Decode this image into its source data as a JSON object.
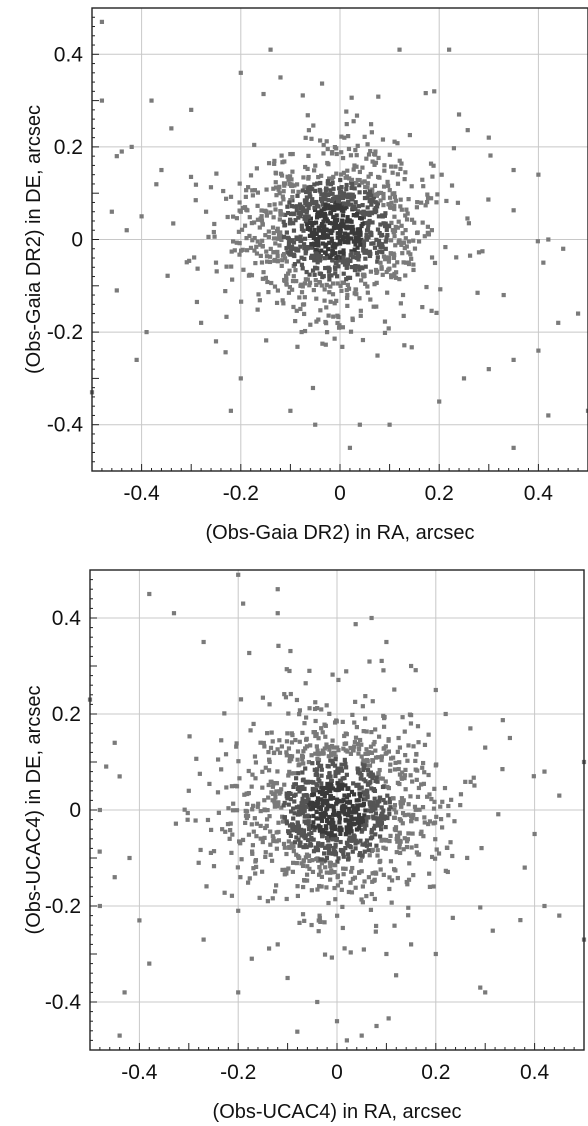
{
  "chart_data": [
    {
      "type": "scatter",
      "xlabel": "(Obs-Gaia DR2) in RA, arcsec",
      "ylabel": "(Obs-Gaia DR2) in DE, arcsec",
      "xlim": [
        -0.5,
        0.5
      ],
      "ylim": [
        -0.5,
        0.5
      ],
      "xticks": [
        -0.4,
        -0.2,
        0,
        0.2,
        0.4
      ],
      "yticks": [
        -0.4,
        -0.2,
        0,
        0.2,
        0.4
      ],
      "xtick_labels": [
        "-0.4",
        "-0.2",
        "0",
        "0.2",
        "0.4"
      ],
      "ytick_labels": [
        "-0.4",
        "-0.2",
        "0",
        "0.2",
        "0.4"
      ],
      "grid": true,
      "marker_color": "#7a7a7a",
      "density_peak": [
        -0.01,
        0.02
      ],
      "points": [
        [
          -0.48,
          0.47
        ],
        [
          -0.45,
          0.18
        ],
        [
          -0.44,
          0.19
        ],
        [
          -0.42,
          0.2
        ],
        [
          -0.46,
          0.06
        ],
        [
          -0.45,
          -0.11
        ],
        [
          -0.48,
          0.3
        ],
        [
          -0.43,
          0.02
        ],
        [
          -0.38,
          0.3
        ],
        [
          -0.4,
          0.05
        ],
        [
          -0.39,
          -0.2
        ],
        [
          -0.41,
          -0.26
        ],
        [
          -0.36,
          0.15
        ],
        [
          -0.34,
          0.24
        ],
        [
          -0.3,
          0.28
        ],
        [
          -0.27,
          0.06
        ],
        [
          -0.25,
          -0.05
        ],
        [
          -0.28,
          -0.18
        ],
        [
          -0.25,
          -0.22
        ],
        [
          -0.22,
          -0.37
        ],
        [
          -0.2,
          0.36
        ],
        [
          -0.14,
          0.41
        ],
        [
          -0.12,
          0.35
        ],
        [
          -0.2,
          0.06
        ],
        [
          -0.2,
          -0.3
        ],
        [
          -0.1,
          -0.37
        ],
        [
          0.12,
          0.41
        ],
        [
          0.22,
          0.41
        ],
        [
          0.19,
          0.32
        ],
        [
          0.24,
          0.27
        ],
        [
          0.3,
          0.22
        ],
        [
          0.35,
          0.15
        ],
        [
          0.4,
          0.14
        ],
        [
          0.42,
          0.0
        ],
        [
          0.45,
          -0.02
        ],
        [
          0.41,
          -0.05
        ],
        [
          0.33,
          -0.12
        ],
        [
          0.35,
          -0.26
        ],
        [
          0.3,
          -0.28
        ],
        [
          0.25,
          -0.3
        ],
        [
          0.2,
          -0.35
        ],
        [
          0.1,
          -0.4
        ],
        [
          -0.05,
          -0.4
        ],
        [
          0.35,
          -0.45
        ],
        [
          0.42,
          -0.38
        ],
        [
          0.5,
          -0.37
        ],
        [
          0.48,
          -0.16
        ],
        [
          0.44,
          -0.18
        ],
        [
          0.4,
          -0.24
        ],
        [
          -0.5,
          -0.33
        ],
        [
          0.04,
          -0.4
        ],
        [
          0.02,
          -0.45
        ]
      ],
      "cluster": {
        "center": [
          -0.01,
          0.02
        ],
        "sigma": [
          0.085,
          0.075
        ],
        "count": 1200
      }
    },
    {
      "type": "scatter",
      "xlabel": "(Obs-UCAC4) in RA, arcsec",
      "ylabel": "(Obs-UCAC4) in DE, arcsec",
      "xlim": [
        -0.5,
        0.5
      ],
      "ylim": [
        -0.5,
        0.5
      ],
      "xticks": [
        -0.4,
        -0.2,
        0,
        0.2,
        0.4
      ],
      "yticks": [
        -0.4,
        -0.2,
        0,
        0.2,
        0.4
      ],
      "xtick_labels": [
        "-0.4",
        "-0.2",
        "0",
        "0.2",
        "0.4"
      ],
      "ytick_labels": [
        "-0.4",
        "-0.2",
        "0",
        "0.2",
        "0.4"
      ],
      "grid": true,
      "marker_color": "#7a7a7a",
      "density_peak": [
        0.0,
        0.0
      ],
      "points": [
        [
          -0.38,
          0.45
        ],
        [
          -0.33,
          0.41
        ],
        [
          -0.27,
          0.35
        ],
        [
          -0.2,
          0.49
        ],
        [
          -0.19,
          0.43
        ],
        [
          -0.12,
          0.46
        ],
        [
          -0.12,
          0.41
        ],
        [
          -0.45,
          0.14
        ],
        [
          -0.44,
          0.07
        ],
        [
          -0.42,
          -0.1
        ],
        [
          -0.45,
          -0.14
        ],
        [
          -0.48,
          -0.2
        ],
        [
          -0.4,
          -0.23
        ],
        [
          -0.38,
          -0.32
        ],
        [
          -0.43,
          -0.38
        ],
        [
          -0.44,
          -0.47
        ],
        [
          -0.3,
          0.04
        ],
        [
          -0.28,
          -0.11
        ],
        [
          -0.27,
          -0.27
        ],
        [
          -0.2,
          -0.21
        ],
        [
          -0.2,
          -0.38
        ],
        [
          -0.12,
          -0.28
        ],
        [
          -0.1,
          -0.35
        ],
        [
          -0.04,
          -0.4
        ],
        [
          0.0,
          -0.44
        ],
        [
          0.02,
          -0.48
        ],
        [
          0.05,
          -0.47
        ],
        [
          0.08,
          -0.45
        ],
        [
          0.07,
          0.4
        ],
        [
          0.1,
          0.35
        ],
        [
          0.15,
          0.3
        ],
        [
          0.2,
          0.25
        ],
        [
          0.22,
          0.2
        ],
        [
          0.27,
          0.17
        ],
        [
          0.3,
          0.13
        ],
        [
          0.35,
          0.15
        ],
        [
          0.42,
          0.08
        ],
        [
          0.45,
          0.03
        ],
        [
          0.5,
          0.1
        ],
        [
          0.4,
          -0.05
        ],
        [
          0.38,
          -0.12
        ],
        [
          0.42,
          -0.2
        ],
        [
          0.45,
          -0.22
        ],
        [
          0.3,
          -0.38
        ],
        [
          0.29,
          -0.37
        ],
        [
          0.2,
          -0.3
        ],
        [
          0.15,
          -0.28
        ],
        [
          0.1,
          -0.3
        ],
        [
          0.5,
          -0.27
        ],
        [
          -0.5,
          0.23
        ],
        [
          -0.48,
          0.0
        ]
      ],
      "cluster": {
        "center": [
          0.0,
          0.0
        ],
        "sigma": [
          0.09,
          0.085
        ],
        "count": 1300
      }
    }
  ]
}
